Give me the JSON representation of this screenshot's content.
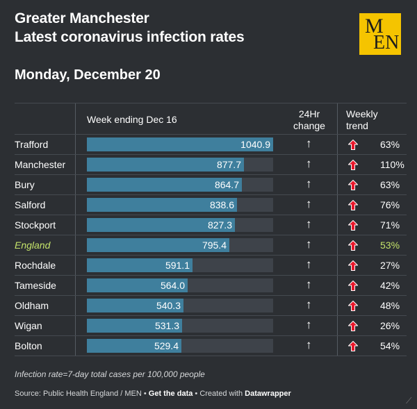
{
  "header": {
    "title_line1": "Greater Manchester",
    "title_line2": "Latest coronavirus infection rates",
    "logo_top": "M",
    "logo_bottom": "EN",
    "date": "Monday, December 20"
  },
  "columns": {
    "week": "Week ending Dec 16",
    "change_line1": "24Hr",
    "change_line2": "change",
    "trend_line1": "Weekly",
    "trend_line2": "trend"
  },
  "colors": {
    "bar": "#3f7f9d",
    "highlight": "#c4e36a",
    "trend_up": "#e8192c"
  },
  "chart_data": {
    "type": "bar",
    "title": "Latest coronavirus infection rates",
    "xlabel": "Week ending Dec 16",
    "xlim": [
      0,
      1040.9
    ],
    "rows": [
      {
        "name": "Trafford",
        "value": "1040.9",
        "rate": 1040.9,
        "change": "↑",
        "trend": "63%",
        "highlight": false
      },
      {
        "name": "Manchester",
        "value": "877.7",
        "rate": 877.7,
        "change": "↑",
        "trend": "110%",
        "highlight": false
      },
      {
        "name": "Bury",
        "value": "864.7",
        "rate": 864.7,
        "change": "↑",
        "trend": "63%",
        "highlight": false
      },
      {
        "name": "Salford",
        "value": "838.6",
        "rate": 838.6,
        "change": "↑",
        "trend": "76%",
        "highlight": false
      },
      {
        "name": "Stockport",
        "value": "827.3",
        "rate": 827.3,
        "change": "↑",
        "trend": "71%",
        "highlight": false
      },
      {
        "name": "England",
        "value": "795.4",
        "rate": 795.4,
        "change": "↑",
        "trend": "53%",
        "highlight": true
      },
      {
        "name": "Rochdale",
        "value": "591.1",
        "rate": 591.1,
        "change": "↑",
        "trend": "27%",
        "highlight": false
      },
      {
        "name": "Tameside",
        "value": "564.0",
        "rate": 564.0,
        "change": "↑",
        "trend": "42%",
        "highlight": false
      },
      {
        "name": "Oldham",
        "value": "540.3",
        "rate": 540.3,
        "change": "↑",
        "trend": "48%",
        "highlight": false
      },
      {
        "name": "Wigan",
        "value": "531.3",
        "rate": 531.3,
        "change": "↑",
        "trend": "26%",
        "highlight": false
      },
      {
        "name": "Bolton",
        "value": "529.4",
        "rate": 529.4,
        "change": "↑",
        "trend": "54%",
        "highlight": false
      }
    ]
  },
  "footer": {
    "note": "Infection rate=7-day total cases per 100,000 people",
    "source_prefix": "Source: Public Health England / MEN • ",
    "get_data": "Get the data",
    "source_mid": " • Created with ",
    "datawrapper": "Datawrapper"
  }
}
